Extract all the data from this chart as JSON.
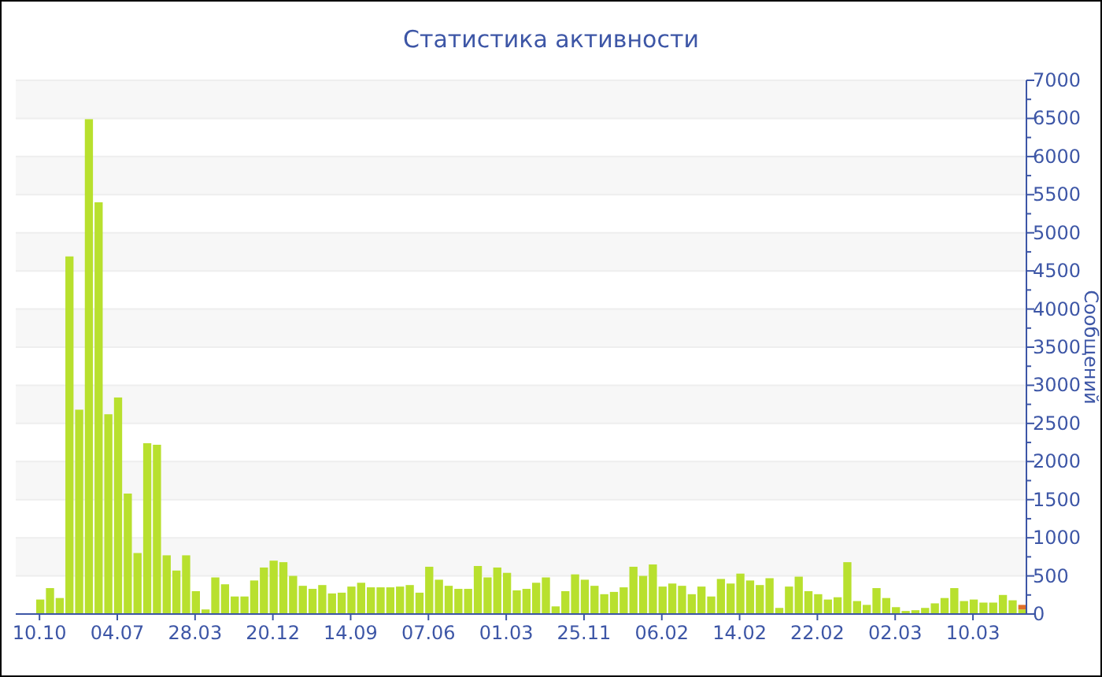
{
  "chart_data": {
    "type": "bar",
    "title": "Статистика активности",
    "ylabel": "Сообщений",
    "stacked": true,
    "grid": "y",
    "categories": [
      "10.10",
      null,
      null,
      null,
      null,
      null,
      null,
      null,
      "04.07",
      null,
      null,
      null,
      null,
      null,
      null,
      null,
      "28.03",
      null,
      null,
      null,
      null,
      null,
      null,
      null,
      "20.12",
      null,
      null,
      null,
      null,
      null,
      null,
      null,
      "14.09",
      null,
      null,
      null,
      null,
      null,
      null,
      null,
      "07.06",
      null,
      null,
      null,
      null,
      null,
      null,
      null,
      "01.03",
      null,
      null,
      null,
      null,
      null,
      null,
      null,
      "25.11",
      null,
      null,
      null,
      null,
      null,
      null,
      null,
      "06.02",
      null,
      null,
      null,
      null,
      null,
      null,
      null,
      "14.02",
      null,
      null,
      null,
      null,
      null,
      null,
      null,
      "22.02",
      null,
      null,
      null,
      null,
      null,
      null,
      null,
      "02.03",
      null,
      null,
      null,
      null,
      null,
      null,
      null,
      "10.03",
      null,
      null,
      null,
      null,
      null
    ],
    "series": [
      {
        "color": "#b8e02e",
        "values": [
          190,
          340,
          210,
          4690,
          2680,
          6490,
          5400,
          2620,
          2840,
          1580,
          800,
          2240,
          2220,
          770,
          570,
          770,
          300,
          60,
          480,
          390,
          230,
          230,
          440,
          610,
          700,
          680,
          500,
          370,
          330,
          380,
          270,
          280,
          360,
          410,
          350,
          350,
          350,
          360,
          380,
          280,
          620,
          450,
          370,
          330,
          330,
          630,
          480,
          610,
          540,
          310,
          330,
          410,
          480,
          100,
          300,
          520,
          450,
          370,
          260,
          290,
          350,
          620,
          500,
          650,
          360,
          400,
          370,
          260,
          360,
          230,
          460,
          400,
          530,
          440,
          380,
          470,
          80,
          360,
          490,
          300,
          260,
          190,
          220,
          680,
          170,
          120,
          340,
          210,
          90,
          40,
          50,
          80,
          140,
          210,
          340,
          170,
          190,
          150,
          150,
          250,
          180,
          60
        ]
      },
      {
        "color": "#e0702a",
        "values": [
          null,
          null,
          null,
          null,
          null,
          null,
          null,
          null,
          null,
          null,
          null,
          null,
          null,
          null,
          null,
          null,
          null,
          null,
          null,
          null,
          null,
          null,
          null,
          null,
          null,
          null,
          null,
          null,
          null,
          null,
          null,
          null,
          null,
          null,
          null,
          null,
          null,
          null,
          null,
          null,
          null,
          null,
          null,
          null,
          null,
          null,
          null,
          null,
          null,
          null,
          null,
          null,
          null,
          null,
          null,
          null,
          null,
          null,
          null,
          null,
          null,
          null,
          null,
          null,
          null,
          null,
          null,
          null,
          null,
          null,
          null,
          null,
          null,
          null,
          null,
          null,
          null,
          null,
          null,
          null,
          null,
          null,
          null,
          null,
          null,
          null,
          null,
          null,
          null,
          null,
          null,
          null,
          null,
          null,
          null,
          null,
          null,
          null,
          null,
          null,
          null,
          60
        ]
      }
    ],
    "ylim": [
      0,
      7000
    ],
    "yticks": [
      0,
      500,
      1000,
      1500,
      2000,
      2500,
      3000,
      3500,
      4000,
      4500,
      5000,
      5500,
      6000,
      6500,
      7000
    ]
  }
}
